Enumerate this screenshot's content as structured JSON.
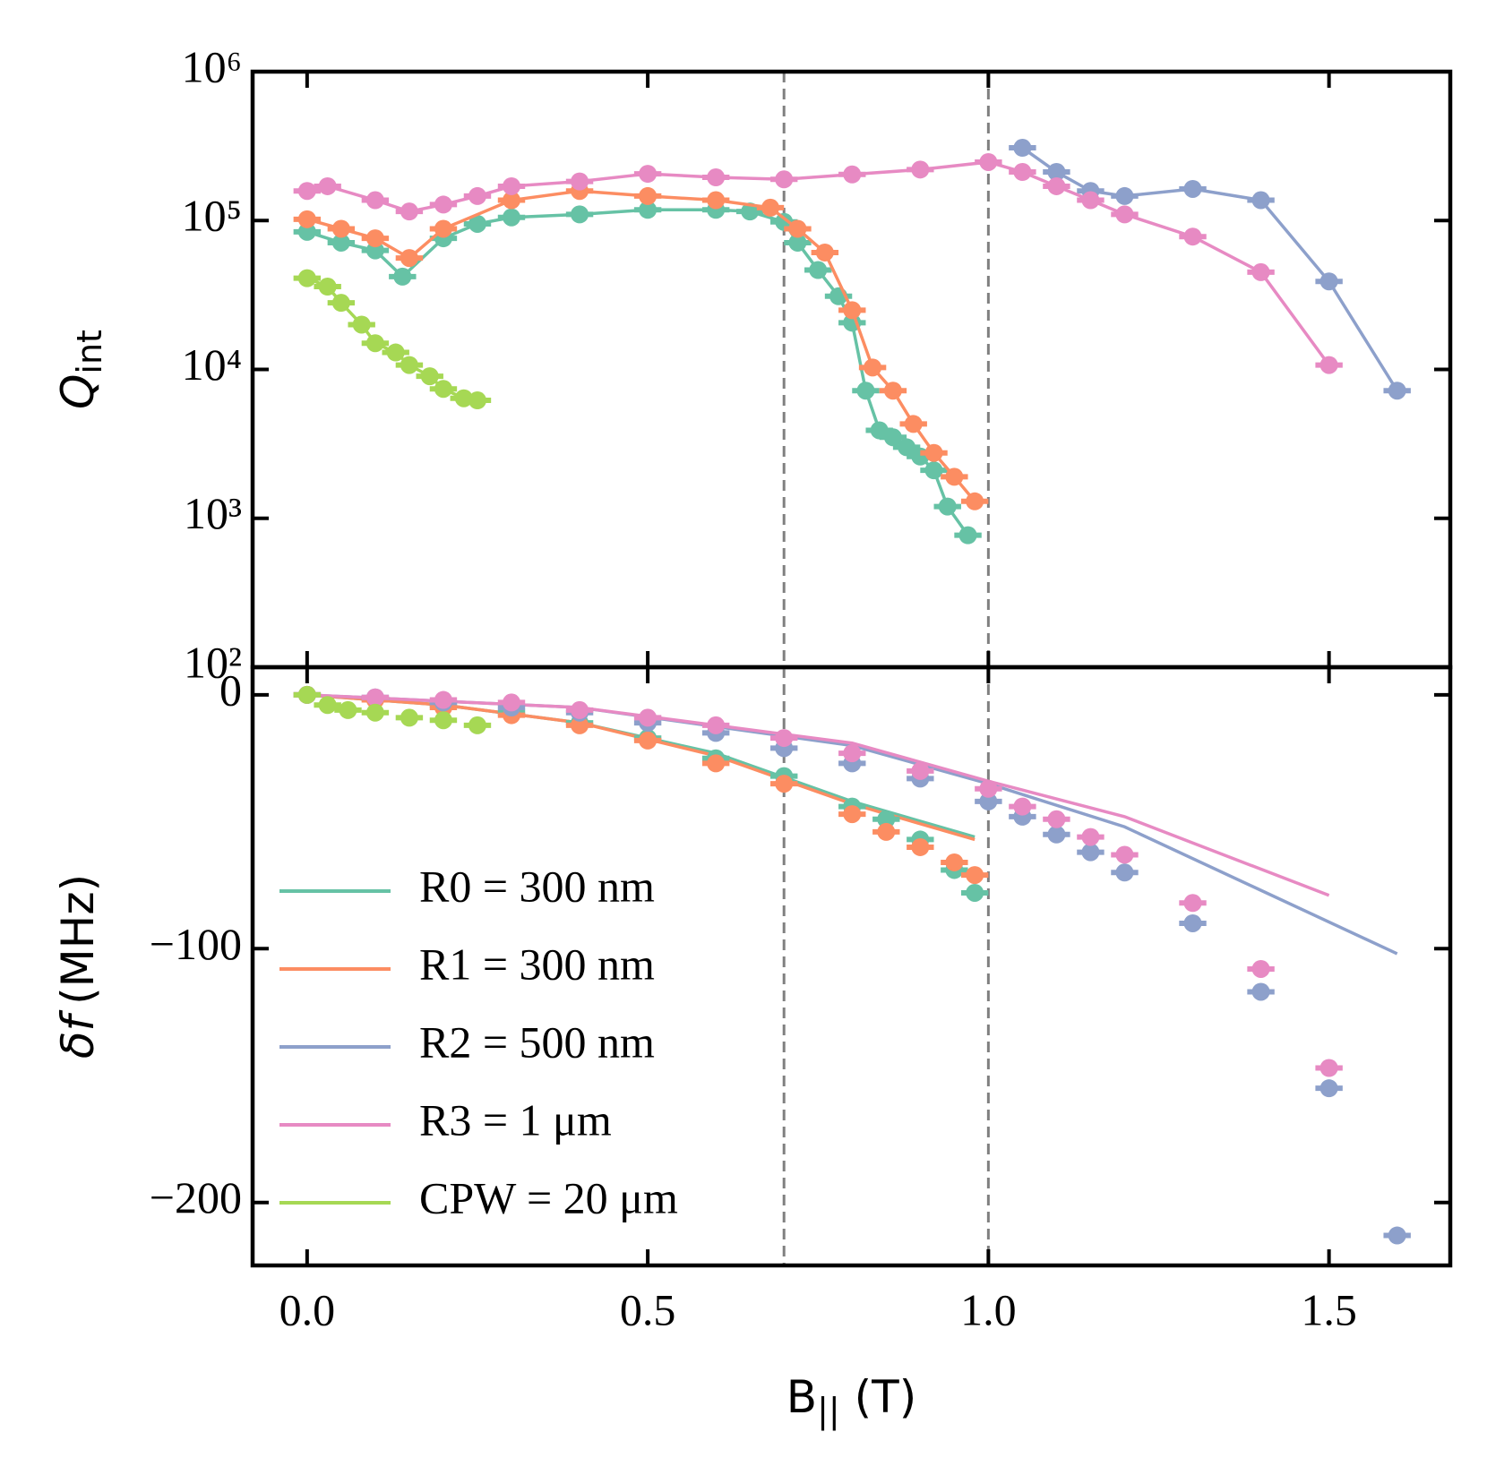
{
  "chart_data": [
    {
      "type": "line",
      "yscale": "log",
      "connect": true,
      "xerr": 0.02,
      "ylabel": [
        "Q",
        "int"
      ],
      "xlim": [
        -0.08,
        1.678
      ],
      "xticks": [
        0,
        0.5,
        1,
        1.5
      ],
      "xtick_labels": false,
      "ylim": [
        100,
        1000000
      ],
      "yticks": [
        {
          "value": 100,
          "label": "10²"
        },
        {
          "value": 1000,
          "label": "10³"
        },
        {
          "value": 10000,
          "label": "10⁴"
        },
        {
          "value": 100000,
          "label": "10⁵"
        },
        {
          "value": 1000000,
          "label": "10⁶"
        }
      ],
      "vlines": [
        0.7,
        1.0
      ],
      "series": [
        {
          "color": "#66c2a5",
          "x": [
            0,
            0.05,
            0.1,
            0.14,
            0.2,
            0.25,
            0.3,
            0.4,
            0.5,
            0.6,
            0.65,
            0.7,
            0.72,
            0.75,
            0.78,
            0.8,
            0.82,
            0.84,
            0.86,
            0.88,
            0.9,
            0.92,
            0.94,
            0.97
          ],
          "values": [
            84000,
            71000,
            63000,
            42000,
            76000,
            95000,
            105000,
            110000,
            118000,
            118000,
            115000,
            98000,
            71000,
            46500,
            31000,
            20600,
            7200,
            3900,
            3500,
            3000,
            2600,
            2100,
            1200,
            770
          ]
        },
        {
          "color": "#fc8d62",
          "x": [
            0,
            0.05,
            0.1,
            0.15,
            0.2,
            0.3,
            0.4,
            0.5,
            0.6,
            0.68,
            0.72,
            0.76,
            0.8,
            0.83,
            0.86,
            0.89,
            0.92,
            0.95,
            0.98
          ],
          "values": [
            102000,
            88000,
            76000,
            56000,
            88000,
            137000,
            158000,
            146000,
            137000,
            122000,
            88000,
            61000,
            25000,
            10300,
            7200,
            4300,
            2750,
            1900,
            1300
          ]
        },
        {
          "color": "#8da0cb",
          "x": [
            1.05,
            1.1,
            1.15,
            1.2,
            1.3,
            1.4,
            1.5,
            1.6
          ],
          "values": [
            308000,
            212000,
            158000,
            146000,
            163000,
            137000,
            39000,
            7200
          ]
        },
        {
          "color": "#e78ac3",
          "x": [
            0,
            0.03,
            0.1,
            0.15,
            0.2,
            0.25,
            0.3,
            0.4,
            0.5,
            0.6,
            0.7,
            0.8,
            0.9,
            1.0,
            1.05,
            1.1,
            1.15,
            1.2,
            1.3,
            1.4,
            1.5
          ],
          "values": [
            158000,
            170000,
            137000,
            115000,
            128000,
            146000,
            170000,
            183000,
            206000,
            195000,
            189000,
            204000,
            220000,
            247000,
            212000,
            170000,
            137000,
            110000,
            78000,
            45000,
            10700
          ]
        },
        {
          "color": "#a6d854",
          "x": [
            0,
            0.03,
            0.05,
            0.08,
            0.1,
            0.13,
            0.15,
            0.18,
            0.2,
            0.23,
            0.25
          ],
          "values": [
            41000,
            36000,
            28000,
            20000,
            15000,
            13000,
            10700,
            9000,
            7400,
            6400,
            6200
          ]
        }
      ]
    },
    {
      "type": "scatter",
      "yscale": "linear",
      "connect": false,
      "xerr": 0.02,
      "ylabel": [
        "δf",
        "(MHz)"
      ],
      "xlabel": [
        "B",
        "||",
        "(T)"
      ],
      "xlim": [
        -0.08,
        1.678
      ],
      "xticks": [
        {
          "value": 0,
          "label": "0.0"
        },
        {
          "value": 0.5,
          "label": "0.5"
        },
        {
          "value": 1,
          "label": "1.0"
        },
        {
          "value": 1.5,
          "label": "1.5"
        }
      ],
      "xtick_labels": true,
      "ylim": [
        -224.8,
        10.9
      ],
      "yticks": [
        {
          "value": -200,
          "label": "−200"
        },
        {
          "value": -100,
          "label": "−100"
        },
        0
      ],
      "vlines": [
        0.7,
        1.0
      ],
      "legend": "lower left",
      "series": [
        {
          "name": "R0 = 300 nm",
          "color": "#66c2a5",
          "x": [
            0,
            0.1,
            0.2,
            0.3,
            0.4,
            0.5,
            0.6,
            0.7,
            0.8,
            0.85,
            0.9,
            0.95,
            0.98
          ],
          "values": [
            0,
            -1.5,
            -4,
            -7,
            -11,
            -17,
            -25,
            -32,
            -44,
            -49,
            -57,
            -69,
            -78
          ]
        },
        {
          "name": "R1 = 300 nm",
          "color": "#fc8d62",
          "x": [
            0,
            0.1,
            0.2,
            0.3,
            0.4,
            0.5,
            0.6,
            0.7,
            0.8,
            0.85,
            0.9,
            0.95,
            0.98
          ],
          "values": [
            0,
            -2,
            -5,
            -8,
            -12,
            -18,
            -27,
            -35,
            -47,
            -54,
            -60,
            -66,
            -71
          ]
        },
        {
          "name": "R2 = 500 nm",
          "color": "#8da0cb",
          "x": [
            0,
            0.1,
            0.2,
            0.3,
            0.4,
            0.5,
            0.6,
            0.7,
            0.8,
            0.9,
            1.0,
            1.05,
            1.1,
            1.15,
            1.2,
            1.3,
            1.4,
            1.5,
            1.6
          ],
          "values": [
            0,
            -1,
            -3,
            -5,
            -7,
            -11,
            -15,
            -21,
            -27,
            -33,
            -42,
            -48,
            -55,
            -62,
            -70,
            -90,
            -117,
            -155,
            -213
          ]
        },
        {
          "name": "R3 = 1 μm",
          "color": "#e78ac3",
          "x": [
            0,
            0.1,
            0.2,
            0.3,
            0.4,
            0.5,
            0.6,
            0.7,
            0.8,
            0.9,
            1.0,
            1.05,
            1.1,
            1.15,
            1.2,
            1.3,
            1.4,
            1.5
          ],
          "values": [
            0,
            -1,
            -2,
            -3,
            -6,
            -9,
            -12,
            -17,
            -23,
            -30,
            -37,
            -44,
            -49,
            -56,
            -63,
            -82,
            -108,
            -147
          ]
        },
        {
          "name": "CPW = 20 μm",
          "color": "#a6d854",
          "x": [
            0,
            0.03,
            0.06,
            0.1,
            0.15,
            0.2,
            0.25
          ],
          "values": [
            0,
            -4,
            -6,
            -7,
            -9,
            -10,
            -12
          ]
        }
      ],
      "fits": [
        {
          "x": [
            0,
            0.2,
            0.4,
            0.6,
            0.8,
            0.98
          ],
          "values": [
            0,
            -4,
            -11,
            -23,
            -42,
            -56
          ]
        },
        {
          "x": [
            0,
            0.2,
            0.4,
            0.6,
            0.8,
            0.98
          ],
          "values": [
            0,
            -4,
            -11,
            -24,
            -43,
            -57
          ]
        },
        {
          "x": [
            0,
            0.4,
            0.8,
            1.0,
            1.2,
            1.4,
            1.6
          ],
          "values": [
            0,
            -5,
            -20,
            -35,
            -52,
            -77,
            -102
          ]
        },
        {
          "x": [
            0,
            0.4,
            0.8,
            1.0,
            1.2,
            1.5
          ],
          "values": [
            0,
            -5,
            -19,
            -34,
            -48,
            -79
          ]
        }
      ]
    }
  ]
}
